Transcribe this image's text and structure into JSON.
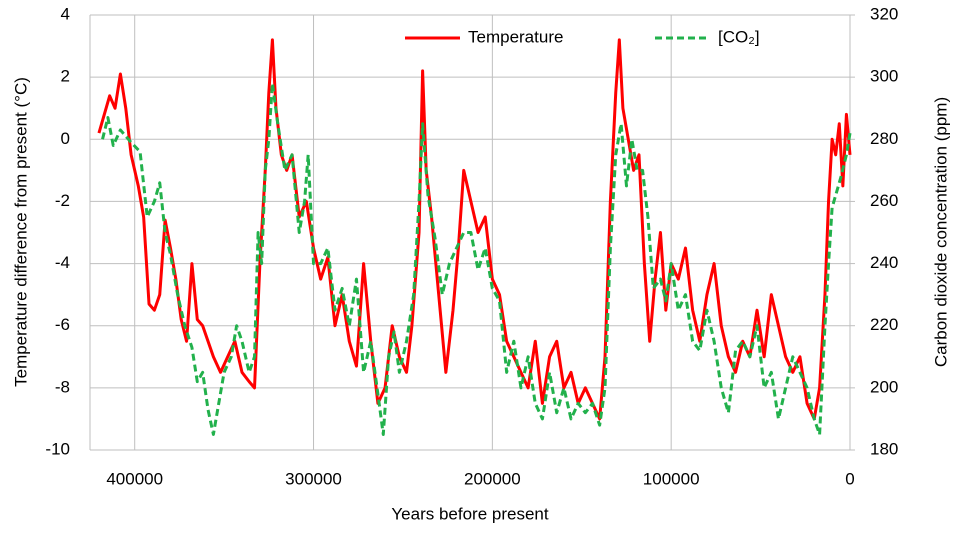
{
  "chart_data": {
    "type": "line",
    "xlabel": "Years before present",
    "ylabel": "Temperature difference from present (°C)",
    "y2label": "Carbon dioxide concentration (ppm)",
    "xlim": [
      425000,
      0
    ],
    "xticks": [
      400000,
      300000,
      200000,
      100000,
      0
    ],
    "ylim": [
      -10,
      4
    ],
    "yticks": [
      -10,
      -8,
      -6,
      -4,
      -2,
      0,
      2,
      4
    ],
    "y2lim": [
      180,
      320
    ],
    "y2ticks": [
      180,
      200,
      220,
      240,
      260,
      280,
      300,
      320
    ],
    "grid": true,
    "legend": "upper right",
    "series": [
      {
        "name": "Temperature",
        "color": "#ff0000",
        "style": "solid",
        "x": [
          420000,
          417000,
          414000,
          411000,
          408000,
          405000,
          402000,
          398000,
          395000,
          392000,
          389000,
          386000,
          383000,
          380000,
          377000,
          374000,
          371000,
          368000,
          365000,
          362000,
          359000,
          356000,
          352000,
          348000,
          344000,
          340000,
          336000,
          333000,
          330000,
          327000,
          325000,
          323000,
          321000,
          318000,
          315000,
          312000,
          308000,
          304000,
          300000,
          296000,
          292000,
          288000,
          284000,
          280000,
          276000,
          272000,
          268000,
          264000,
          260000,
          256000,
          252000,
          248000,
          245000,
          241000,
          239000,
          237000,
          234000,
          230000,
          226000,
          222000,
          219000,
          216000,
          212000,
          208000,
          204000,
          200000,
          196000,
          192000,
          188000,
          184000,
          180000,
          176000,
          172000,
          168000,
          164000,
          160000,
          156000,
          152000,
          148000,
          144000,
          140000,
          137000,
          134000,
          131000,
          129000,
          127000,
          124000,
          121000,
          118000,
          115000,
          112000,
          109000,
          106000,
          103000,
          100000,
          96000,
          92000,
          88000,
          84000,
          80000,
          76000,
          72000,
          68000,
          64000,
          60000,
          56000,
          52000,
          48000,
          44000,
          40000,
          36000,
          32000,
          28000,
          24000,
          20000,
          17000,
          14000,
          12000,
          10000,
          8000,
          6000,
          4000,
          2000,
          0
        ],
        "values": [
          0.2,
          0.8,
          1.4,
          1.0,
          2.1,
          1.0,
          -0.5,
          -1.5,
          -2.5,
          -5.3,
          -5.5,
          -5.0,
          -2.6,
          -3.5,
          -4.5,
          -5.8,
          -6.5,
          -4.0,
          -5.8,
          -6.0,
          -6.5,
          -7.0,
          -7.5,
          -7.0,
          -6.5,
          -7.5,
          -7.8,
          -8.0,
          -4.0,
          -1.0,
          1.5,
          3.2,
          1.0,
          -0.5,
          -1.0,
          -0.5,
          -2.5,
          -2.0,
          -3.5,
          -4.5,
          -3.8,
          -6.0,
          -5.0,
          -6.5,
          -7.3,
          -4.0,
          -6.5,
          -8.5,
          -8.0,
          -6.0,
          -7.0,
          -7.5,
          -6.0,
          -3.0,
          2.2,
          -1.0,
          -2.5,
          -5.0,
          -7.5,
          -5.5,
          -3.5,
          -1.0,
          -2.0,
          -3.0,
          -2.5,
          -4.5,
          -5.0,
          -6.5,
          -7.0,
          -7.5,
          -8.0,
          -6.5,
          -8.5,
          -7.0,
          -6.5,
          -8.0,
          -7.5,
          -8.5,
          -8.0,
          -8.5,
          -9.0,
          -7.0,
          -2.0,
          1.5,
          3.2,
          1.0,
          0.0,
          -1.0,
          -0.5,
          -4.0,
          -6.5,
          -4.5,
          -3.0,
          -5.5,
          -4.0,
          -4.5,
          -3.5,
          -5.5,
          -6.5,
          -5.0,
          -4.0,
          -6.0,
          -7.0,
          -7.5,
          -6.5,
          -7.0,
          -5.5,
          -7.0,
          -5.0,
          -6.0,
          -7.0,
          -7.5,
          -7.0,
          -8.5,
          -9.0,
          -8.0,
          -5.0,
          -2.0,
          0.0,
          -0.5,
          0.5,
          -1.5,
          0.8,
          -0.5
        ]
      },
      {
        "name": "[CO₂]",
        "color": "#22b14c",
        "style": "dashed",
        "axis": "y2",
        "x": [
          418000,
          415000,
          412000,
          408000,
          402000,
          397000,
          393000,
          389000,
          386000,
          383000,
          380000,
          376000,
          372000,
          368000,
          365000,
          362000,
          359000,
          356000,
          353000,
          350000,
          346000,
          343000,
          340000,
          336000,
          333000,
          331000,
          329000,
          327000,
          325000,
          323000,
          320000,
          316000,
          312000,
          308000,
          305000,
          303000,
          300000,
          296000,
          292000,
          288000,
          284000,
          280000,
          276000,
          272000,
          268000,
          264000,
          261000,
          258000,
          255000,
          252000,
          248000,
          244000,
          241000,
          239000,
          236000,
          232000,
          228000,
          224000,
          220000,
          216000,
          212000,
          208000,
          204000,
          200000,
          196000,
          192000,
          188000,
          184000,
          180000,
          176000,
          172000,
          168000,
          164000,
          160000,
          156000,
          152000,
          148000,
          144000,
          140000,
          137000,
          134000,
          131000,
          128000,
          125000,
          122000,
          119000,
          116000,
          113000,
          110000,
          106000,
          103000,
          100000,
          96000,
          92000,
          88000,
          84000,
          80000,
          76000,
          72000,
          68000,
          64000,
          60000,
          56000,
          52000,
          48000,
          44000,
          40000,
          36000,
          32000,
          28000,
          24000,
          20000,
          17000,
          14000,
          12000,
          10000,
          8000,
          5000,
          2000,
          0
        ],
        "values": [
          280,
          287,
          278,
          283,
          279,
          276,
          255,
          260,
          266,
          250,
          243,
          230,
          220,
          213,
          202,
          205,
          193,
          185,
          195,
          205,
          210,
          220,
          215,
          205,
          210,
          250,
          240,
          270,
          280,
          298,
          285,
          270,
          275,
          250,
          260,
          275,
          240,
          240,
          245,
          225,
          232,
          220,
          235,
          205,
          215,
          198,
          185,
          210,
          218,
          205,
          215,
          230,
          260,
          285,
          262,
          248,
          230,
          240,
          245,
          250,
          250,
          238,
          245,
          232,
          228,
          205,
          215,
          200,
          210,
          195,
          190,
          205,
          192,
          200,
          190,
          195,
          192,
          195,
          188,
          200,
          245,
          275,
          285,
          265,
          280,
          270,
          270,
          255,
          232,
          235,
          228,
          240,
          225,
          230,
          215,
          212,
          225,
          215,
          200,
          192,
          212,
          215,
          210,
          220,
          200,
          205,
          190,
          200,
          210,
          205,
          200,
          190,
          185,
          220,
          240,
          258,
          262,
          268,
          275,
          282
        ]
      }
    ]
  }
}
